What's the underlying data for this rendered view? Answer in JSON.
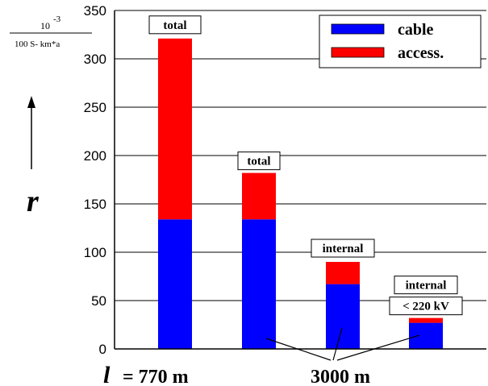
{
  "chart_data": {
    "type": "bar",
    "stacked": true,
    "ylim": [
      0,
      350
    ],
    "yticks": [
      0,
      50,
      100,
      150,
      200,
      250,
      300,
      350
    ],
    "grid": true,
    "legend_position": "top-right",
    "ylabel": {
      "symbol": "r",
      "unit_numerator": "10",
      "unit_exponent": "-3",
      "unit_denominator": "100 S- km*a"
    },
    "series": [
      {
        "name": "cable",
        "color": "#0000ff",
        "values": [
          134,
          134,
          67,
          27
        ]
      },
      {
        "name": "access.",
        "color": "#ff0000",
        "values": [
          187,
          48,
          23,
          5
        ]
      }
    ],
    "bar_labels": [
      "total",
      "total",
      "internal",
      "internal"
    ],
    "extra_label": "< 220 kV",
    "x_annotation": {
      "symbol": "l",
      "equals": "= 770 m",
      "group_label": "3000 m"
    }
  }
}
